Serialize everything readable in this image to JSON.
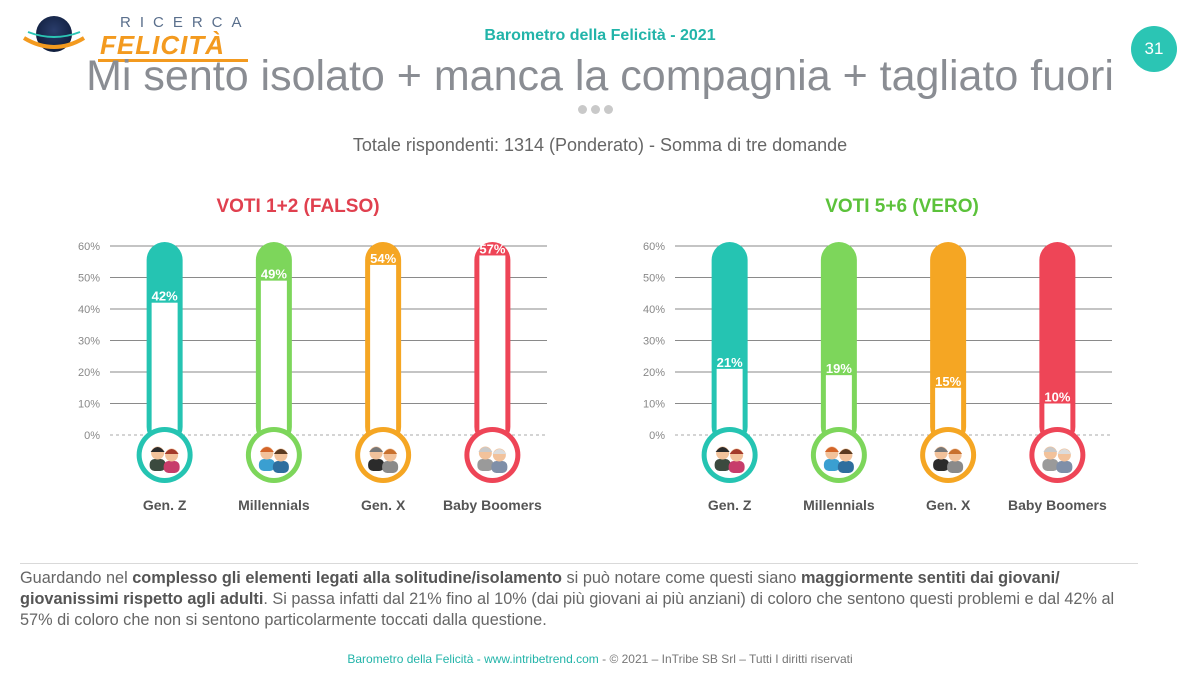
{
  "header": {
    "logo_top": "RICERCA",
    "logo_main": "FELICITÀ",
    "report_title": "Barometro della Felicità - 2021",
    "page_number": "31",
    "title": "Mi sento isolato + manca la compagnia + tagliato fuori",
    "subtitle": "Totale rispondenti: 1314 (Ponderato) - Somma di tre domande"
  },
  "chart_data": [
    {
      "type": "bar",
      "title": "VOTI 1+2 (FALSO)",
      "title_color": "#e0404f",
      "categories": [
        "Gen. Z",
        "Millennials",
        "Gen. X",
        "Baby Boomers"
      ],
      "values": [
        42,
        49,
        54,
        57
      ],
      "value_labels": [
        "42%",
        "49%",
        "54%",
        "57%"
      ],
      "ylim": [
        0,
        60
      ],
      "yticks": [
        "0%",
        "10%",
        "20%",
        "30%",
        "40%",
        "50%",
        "60%"
      ],
      "colors": [
        "#25c4b2",
        "#7dd65b",
        "#f5a623",
        "#ee4557"
      ],
      "grid": true
    },
    {
      "type": "bar",
      "title": "VOTI 5+6 (VERO)",
      "title_color": "#5cc23b",
      "categories": [
        "Gen. Z",
        "Millennials",
        "Gen. X",
        "Baby Boomers"
      ],
      "values": [
        21,
        19,
        15,
        10
      ],
      "value_labels": [
        "21%",
        "19%",
        "15%",
        "10%"
      ],
      "ylim": [
        0,
        60
      ],
      "yticks": [
        "0%",
        "10%",
        "20%",
        "30%",
        "40%",
        "50%",
        "60%"
      ],
      "colors": [
        "#25c4b2",
        "#7dd65b",
        "#f5a623",
        "#ee4557"
      ],
      "grid": true
    }
  ],
  "description": {
    "p1": "Guardando nel ",
    "b1": "complesso gli elementi legati alla solitudine/isolamento",
    "p2": " si può notare come questi siano ",
    "b2": "maggiormente sentiti dai giovani/ giovanissimi rispetto agli adulti",
    "p3": ". Si passa infatti dal 21% fino al 10% (dai più giovani ai più anziani) di coloro che sentono questi problemi e dal 42% al 57% di coloro che non si sentono particolarmente toccati dalla questione."
  },
  "footer": {
    "brand": "Barometro della Felicità - www.intribetrend.com",
    "rest": " - © 2021 – InTribe SB Srl – Tutti I diritti riservati"
  }
}
